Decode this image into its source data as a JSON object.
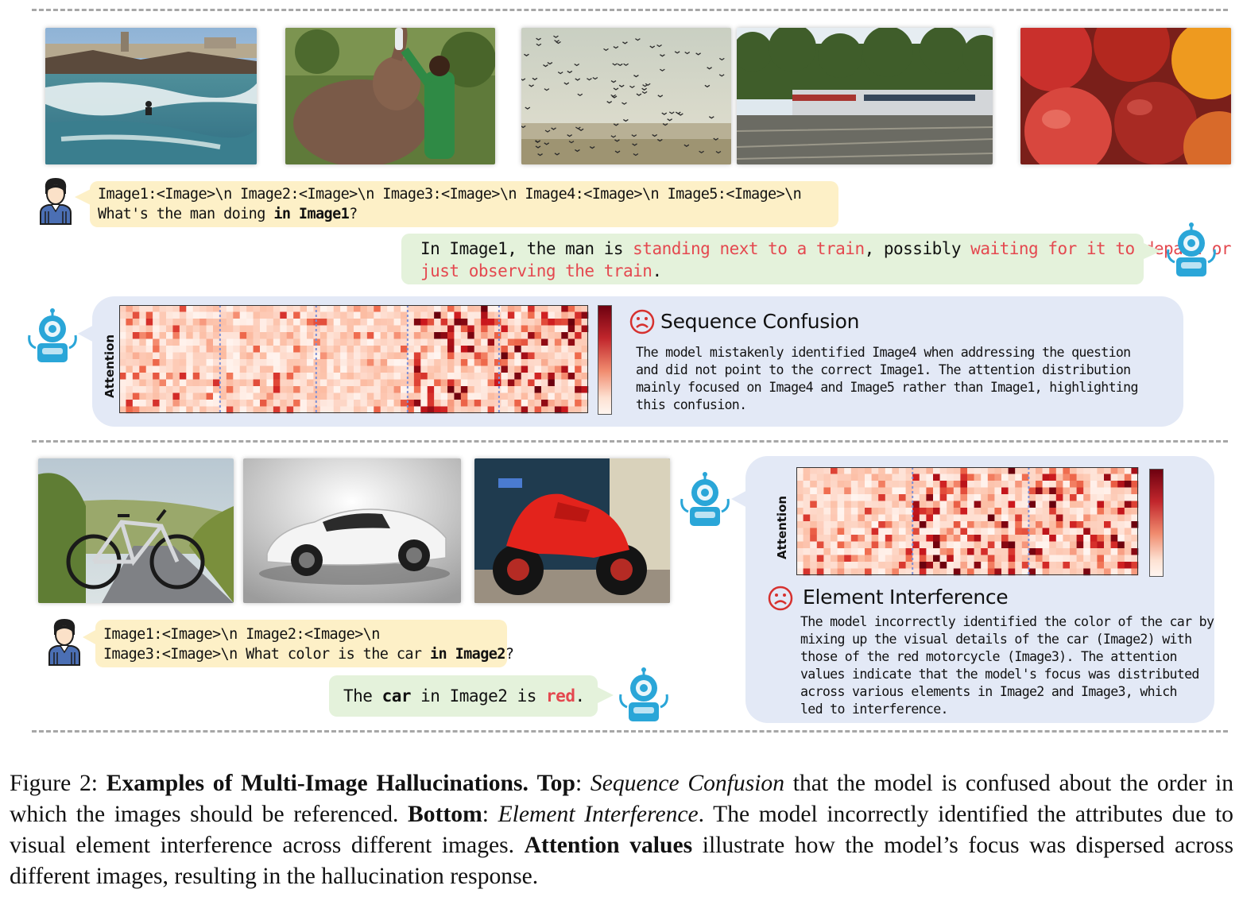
{
  "top": {
    "image_subjects": [
      "surfer-photo",
      "elephant-feeding-photo",
      "birds-flock-photo",
      "train-photo",
      "apples-oranges-photo"
    ],
    "user_prompt": {
      "line1": "Image1:<Image>\\n Image2:<Image>\\n Image3:<Image>\\n Image4:<Image>\\n Image5:<Image>\\n",
      "line2_pre": "What's the man doing ",
      "line2_bold": "in Image1",
      "line2_post": "?"
    },
    "response": {
      "p1": "In Image1, the man is ",
      "p2_red": "standing next to a train",
      "p3": ", possibly ",
      "p4_red": "waiting for it to depart or",
      "p5_red": "just observing the train",
      "p6": "."
    },
    "panel": {
      "attention_label": "Attention",
      "title": "Sequence Confusion",
      "desc_lines": [
        "The model mistakenly identified Image4 when addressing the question",
        "and did not point to the correct Image1. The attention distribution",
        "mainly focused on Image4 and Image5 rather than Image1, highlighting",
        "this confusion."
      ]
    }
  },
  "bottom": {
    "image_subjects": [
      "bicycle-photo",
      "white-car-photo",
      "red-motorcycle-photo"
    ],
    "user_prompt": {
      "line1": "Image1:<Image>\\n Image2:<Image>\\n",
      "line2_pre": "Image3:<Image>\\n What color is the car ",
      "line2_bold": "in Image2",
      "line2_post": "?"
    },
    "response": {
      "p1": "The ",
      "p2_bold": "car",
      "p3": " in Image2 is ",
      "p4_red": "red",
      "p5": "."
    },
    "panel": {
      "attention_label": "Attention",
      "title": "Element Interference",
      "desc_lines": [
        "The model incorrectly identified the color of the car by",
        "mixing up the visual details of the car (Image2) with",
        "those of the red motorcycle (Image3). The attention",
        "values indicate that the model's focus was distributed",
        "across various elements in Image2 and Image3, which",
        "led to interference."
      ]
    }
  },
  "caption": {
    "fig": "Figure 2: ",
    "title_bold": "Examples of Multi-Image Hallucinations.",
    "s1": " ",
    "top_bold": "Top",
    "s2": ": ",
    "seq_italic": "Sequence Confusion",
    "s3": " that the model is confused about the order in which the images should be referenced. ",
    "bottom_bold": "Bottom",
    "s4": ": ",
    "elem_italic": "Element Interference",
    "s5": ". The model incorrectly identified the attributes due to visual element interference across different images. ",
    "attn_bold": "Attention values",
    "s6": " illustrate how the model’s focus was dispersed across different images, resulting in the hallucination response."
  },
  "colors": {
    "user_bubble": "#fdf0c7",
    "bot_bubble": "#e4f2db",
    "panel": "#e3e9f6",
    "hallucination_red": "#e4484f",
    "robot": "#2aa6d8",
    "sad_face": "#d6312f"
  }
}
